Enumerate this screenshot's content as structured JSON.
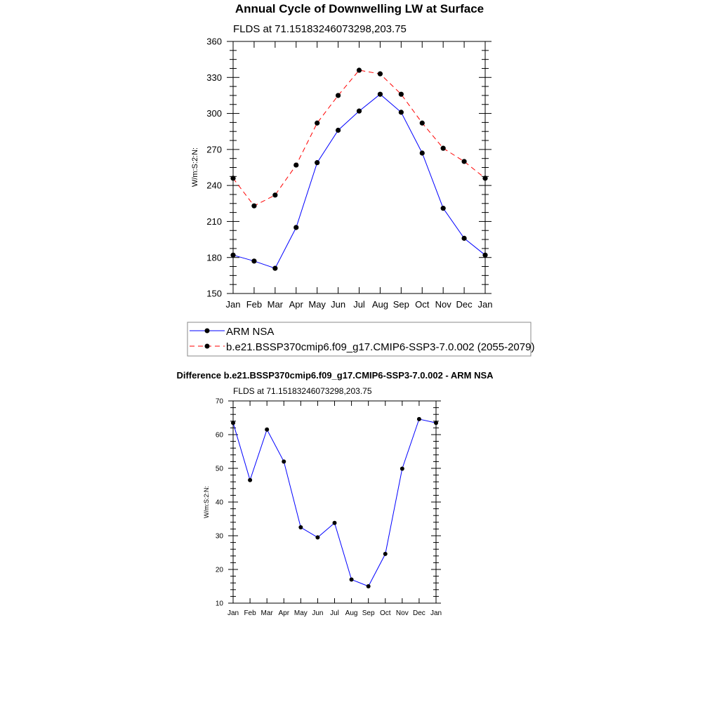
{
  "chart_data": [
    {
      "type": "line",
      "title": "Annual Cycle of Downwelling LW at Surface",
      "subtitle": "FLDS at 71.15183246073298,203.75",
      "xlabel": "",
      "ylabel": "W/m:S:2:N:",
      "categories": [
        "Jan",
        "Feb",
        "Mar",
        "Apr",
        "May",
        "Jun",
        "Jul",
        "Aug",
        "Sep",
        "Oct",
        "Nov",
        "Dec",
        "Jan"
      ],
      "ylim": [
        150,
        360
      ],
      "yticks": [
        150,
        180,
        210,
        240,
        270,
        300,
        330,
        360
      ],
      "grid": false,
      "legend": "below",
      "series": [
        {
          "name": "ARM NSA",
          "color": "#0000ff",
          "dash": "solid",
          "values": [
            182,
            177,
            171,
            205,
            259,
            286,
            302,
            316,
            301,
            267,
            221,
            196,
            182
          ]
        },
        {
          "name": "b.e21.BSSP370cmip6.f09_g17.CMIP6-SSP3-7.0.002 (2055-2079)",
          "color": "#ff0000",
          "dash": "dashed",
          "values": [
            246,
            223,
            232,
            257,
            292,
            315,
            336,
            333,
            316,
            292,
            271,
            260,
            246
          ]
        }
      ]
    },
    {
      "type": "line",
      "title": "Difference b.e21.BSSP370cmip6.f09_g17.CMIP6-SSP3-7.0.002 - ARM NSA",
      "subtitle": "FLDS at 71.15183246073298,203.75",
      "xlabel": "",
      "ylabel": "W/m:S:2:N:",
      "categories": [
        "Jan",
        "Feb",
        "Mar",
        "Apr",
        "May",
        "Jun",
        "Jul",
        "Aug",
        "Sep",
        "Oct",
        "Nov",
        "Dec",
        "Jan"
      ],
      "ylim": [
        10,
        70
      ],
      "yticks": [
        10,
        20,
        30,
        40,
        50,
        60,
        70
      ],
      "grid": false,
      "series": [
        {
          "color": "#0000ff",
          "dash": "solid",
          "values": [
            63.5,
            46.5,
            61.5,
            52,
            32.5,
            29.5,
            33.8,
            17,
            15,
            24.6,
            49.9,
            64.6,
            63.5
          ]
        }
      ]
    }
  ]
}
